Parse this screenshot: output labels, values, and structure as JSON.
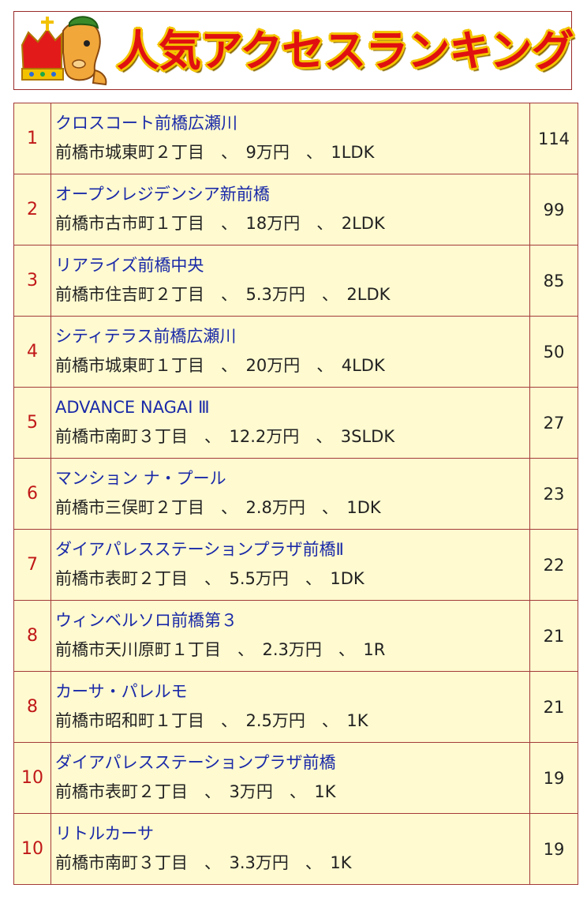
{
  "header": {
    "title": "人気アクセスランキング",
    "mascot_icon": "crowned-horse-mascot"
  },
  "colors": {
    "title_fill": "#e01010",
    "title_outline": "#f4c400",
    "rank_text": "#c01818",
    "name_link": "#1a2aa8",
    "row_background": "#fffad0",
    "border": "#a33a3a"
  },
  "rows": [
    {
      "rank": "1",
      "name": "クロスコート前橋広瀬川",
      "detail": "前橋市城東町２丁目　、　9万円　、　1LDK",
      "count": "114"
    },
    {
      "rank": "2",
      "name": "オープンレジデンシア新前橋",
      "detail": "前橋市古市町１丁目　、　18万円　、　2LDK",
      "count": "99"
    },
    {
      "rank": "3",
      "name": "リアライズ前橋中央",
      "detail": "前橋市住吉町２丁目　、　5.3万円　、　2LDK",
      "count": "85"
    },
    {
      "rank": "4",
      "name": "シティテラス前橋広瀬川",
      "detail": "前橋市城東町１丁目　、　20万円　、　4LDK",
      "count": "50"
    },
    {
      "rank": "5",
      "name": "ADVANCE NAGAI Ⅲ",
      "detail": "前橋市南町３丁目　、　12.2万円　、　3SLDK",
      "count": "27"
    },
    {
      "rank": "6",
      "name": "マンション ナ・プール",
      "detail": "前橋市三俣町２丁目　、　2.8万円　、　1DK",
      "count": "23"
    },
    {
      "rank": "7",
      "name": "ダイアパレスステーションプラザ前橋Ⅱ",
      "detail": "前橋市表町２丁目　、　5.5万円　、　1DK",
      "count": "22"
    },
    {
      "rank": "8",
      "name": "ウィンベルソロ前橋第３",
      "detail": "前橋市天川原町１丁目　、　2.3万円　、　1R",
      "count": "21"
    },
    {
      "rank": "8",
      "name": "カーサ・パレルモ",
      "detail": "前橋市昭和町１丁目　、　2.5万円　、　1K",
      "count": "21"
    },
    {
      "rank": "10",
      "name": "ダイアパレスステーションプラザ前橋",
      "detail": "前橋市表町２丁目　、　3万円　、　1K",
      "count": "19"
    },
    {
      "rank": "10",
      "name": "リトルカーサ",
      "detail": "前橋市南町３丁目　、　3.3万円　、　1K",
      "count": "19"
    }
  ]
}
